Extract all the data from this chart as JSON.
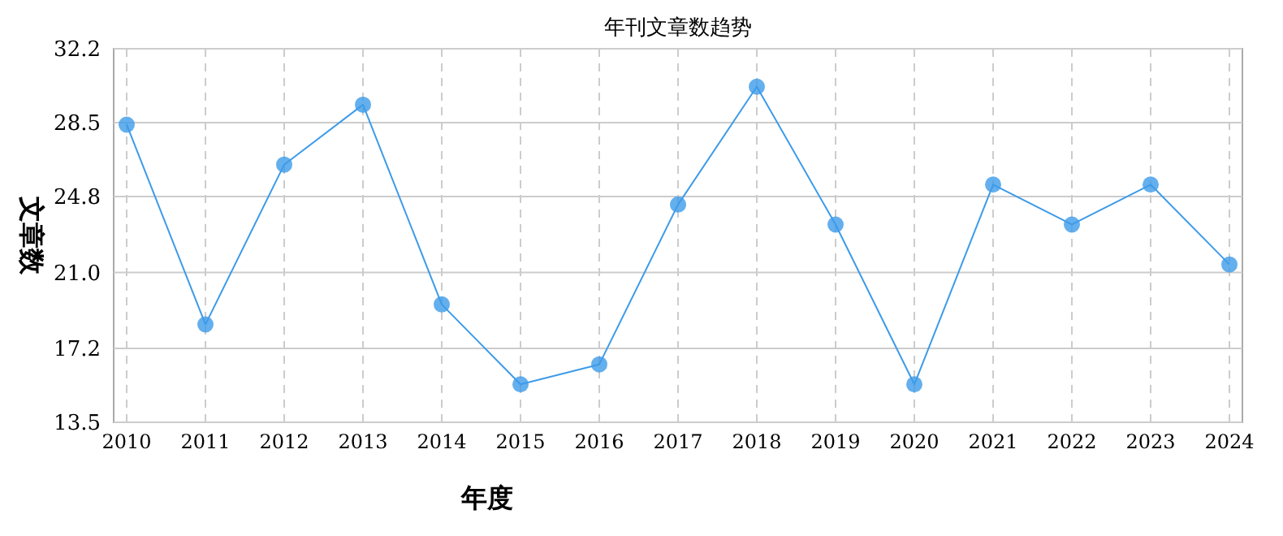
{
  "chart_data": {
    "type": "line",
    "title": "年刊文章数趋势",
    "xlabel": "年度",
    "ylabel": "文章数",
    "categories": [
      "2010",
      "2011",
      "2012",
      "2013",
      "2014",
      "2015",
      "2016",
      "2017",
      "2018",
      "2019",
      "2020",
      "2021",
      "2022",
      "2023",
      "2024"
    ],
    "series": [
      {
        "color": "#3d9be9",
        "values": [
          28.4,
          18.4,
          26.4,
          29.4,
          19.4,
          15.4,
          16.4,
          24.4,
          30.3,
          23.4,
          15.4,
          25.4,
          23.4,
          25.4,
          21.4
        ]
      }
    ],
    "ylim": [
      13.5,
      32.2
    ],
    "yticks": [
      13.5,
      17.2,
      {
        "value": 21,
        "label": "21.0"
      },
      24.8,
      28.5,
      32.2
    ],
    "grid": true,
    "marker": "circle",
    "line_style": "solid"
  }
}
